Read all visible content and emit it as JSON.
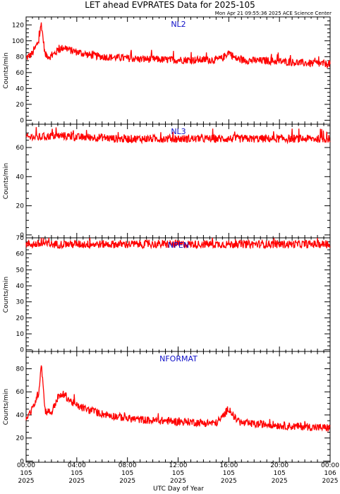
{
  "header": {
    "title": "LET ahead EVPRATES Data for 2025-105",
    "timestamp": "Mon Apr 21 09:55:36 2025 ACE Science Center"
  },
  "x_axis_label": "UTC Day of Year",
  "colors": {
    "trace": "#ff0000",
    "panel_title": "#1010c8",
    "axes": "#000000"
  },
  "chart_data": [
    {
      "type": "line",
      "title": "NL2",
      "ylabel": "Counts/min",
      "ylim": [
        -5,
        130
      ],
      "yticks": [
        0,
        20,
        40,
        60,
        80,
        100,
        120
      ],
      "xlim": [
        0,
        24
      ],
      "x_unit": "hours UTC",
      "series": [
        {
          "x": [
            0,
            0.5,
            1,
            1.2,
            1.5,
            2,
            2.5,
            3,
            3.5,
            4,
            4.5,
            5,
            6,
            7,
            8,
            9,
            10,
            11,
            12,
            13,
            14,
            15,
            15.5,
            16,
            16.5,
            17,
            18,
            19,
            20,
            21,
            22,
            23,
            24
          ],
          "values": [
            78,
            84,
            100,
            122,
            82,
            80,
            88,
            92,
            88,
            86,
            84,
            82,
            80,
            79,
            78,
            77,
            77,
            76,
            76,
            76,
            76,
            76,
            78,
            86,
            78,
            76,
            75,
            75,
            74,
            73,
            72,
            71,
            71
          ]
        }
      ]
    },
    {
      "type": "line",
      "title": "NL3",
      "ylabel": "Counts/min",
      "ylim": [
        -2,
        76
      ],
      "yticks": [
        0,
        20,
        40,
        60
      ],
      "xlim": [
        0,
        24
      ],
      "x_unit": "hours UTC",
      "series": [
        {
          "x": [
            0,
            1,
            2,
            3,
            4,
            5,
            6,
            7,
            8,
            9,
            10,
            11,
            12,
            13,
            14,
            15,
            16,
            17,
            18,
            19,
            20,
            21,
            22,
            23,
            24
          ],
          "values": [
            67,
            67,
            68,
            68,
            67,
            67,
            67,
            66,
            66,
            66,
            66,
            66,
            66,
            66,
            66,
            66,
            66,
            66,
            66,
            66,
            66,
            66,
            66,
            66,
            66
          ]
        }
      ]
    },
    {
      "type": "line",
      "title": "NPEN",
      "ylabel": "Counts/min",
      "ylim": [
        -1,
        70
      ],
      "yticks": [
        0,
        10,
        20,
        30,
        40,
        50,
        60,
        70
      ],
      "xlim": [
        0,
        24
      ],
      "x_unit": "hours UTC",
      "series": [
        {
          "x": [
            0,
            2,
            4,
            6,
            8,
            10,
            12,
            14,
            16,
            18,
            20,
            22,
            24
          ],
          "values": [
            66,
            66,
            66,
            66,
            66,
            66,
            66,
            66,
            66,
            66,
            66,
            66,
            66
          ]
        }
      ]
    },
    {
      "type": "line",
      "title": "NFORMAT",
      "ylabel": "Counts/min",
      "ylim": [
        -1,
        95
      ],
      "yticks": [
        0,
        20,
        40,
        60,
        80
      ],
      "xlim": [
        0,
        24
      ],
      "x_unit": "hours UTC",
      "series": [
        {
          "x": [
            0,
            0.5,
            1,
            1.2,
            1.5,
            2,
            2.5,
            3,
            3.5,
            4,
            4.5,
            5,
            6,
            7,
            8,
            9,
            10,
            11,
            12,
            13,
            14,
            15,
            15.5,
            16,
            16.5,
            17,
            18,
            19,
            20,
            21,
            22,
            23,
            24
          ],
          "values": [
            36,
            45,
            60,
            85,
            44,
            42,
            55,
            58,
            52,
            48,
            46,
            44,
            41,
            39,
            37,
            36,
            35,
            35,
            34,
            34,
            33,
            33,
            38,
            46,
            37,
            33,
            32,
            32,
            31,
            30,
            30,
            29,
            29
          ]
        }
      ]
    }
  ],
  "x_ticks": [
    {
      "time": "00:00",
      "day": "105",
      "year": "2025"
    },
    {
      "time": "04:00",
      "day": "105",
      "year": "2025"
    },
    {
      "time": "08:00",
      "day": "105",
      "year": "2025"
    },
    {
      "time": "12:00",
      "day": "105",
      "year": "2025"
    },
    {
      "time": "16:00",
      "day": "105",
      "year": "2025"
    },
    {
      "time": "20:00",
      "day": "105",
      "year": "2025"
    },
    {
      "time": "00:00",
      "day": "106",
      "year": "2025"
    }
  ]
}
